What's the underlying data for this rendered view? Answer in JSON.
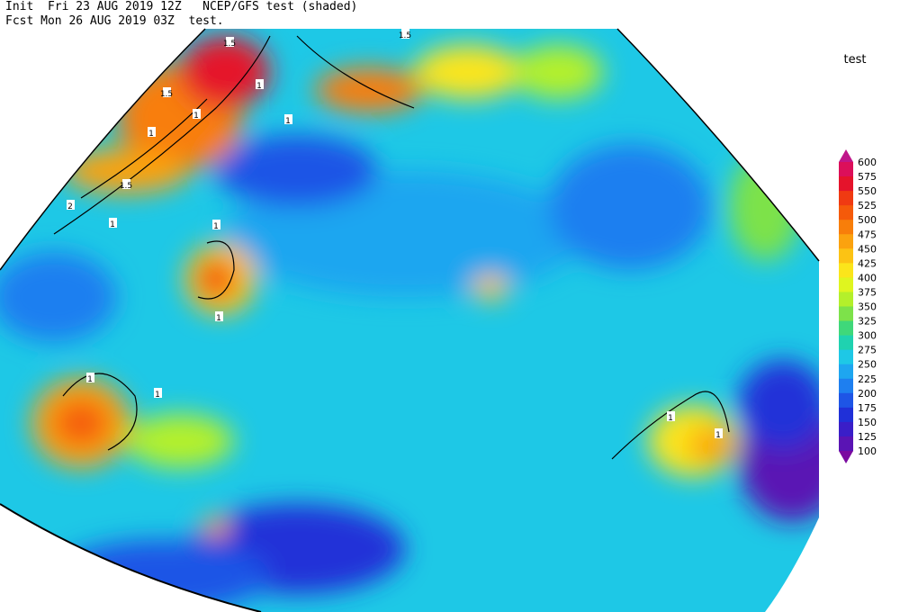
{
  "header": {
    "line1": [
      "Init  Fri 23 AUG 2019 12Z",
      "NCEP/GFS test (shaded)"
    ],
    "line2": [
      "Fcst Mon 26 AUG 2019 03Z",
      "test."
    ]
  },
  "colorbar": {
    "title": "test",
    "levels": [
      600,
      575,
      550,
      525,
      500,
      475,
      450,
      425,
      400,
      375,
      350,
      325,
      300,
      275,
      250,
      225,
      200,
      175,
      150,
      125,
      100
    ],
    "colors": [
      "#c0168a",
      "#dc0f5a",
      "#e5132b",
      "#f03a12",
      "#f55a0a",
      "#f87e0a",
      "#fba20f",
      "#fcc314",
      "#fbe51b",
      "#dff51f",
      "#b4f02b",
      "#7de24a",
      "#3fd87a",
      "#1fd2b0",
      "#1ec8e6",
      "#1ea6f0",
      "#1e7ff0",
      "#1e55e6",
      "#2030d8",
      "#3a1ec8",
      "#5a14b4",
      "#7a0aa0"
    ]
  },
  "contour_labels": [
    "1.5",
    "1.5",
    "1.5",
    "1",
    "1",
    "1",
    "1.5",
    "1",
    "2",
    "1",
    "1",
    "1",
    "1",
    "1",
    "1",
    "1"
  ]
}
